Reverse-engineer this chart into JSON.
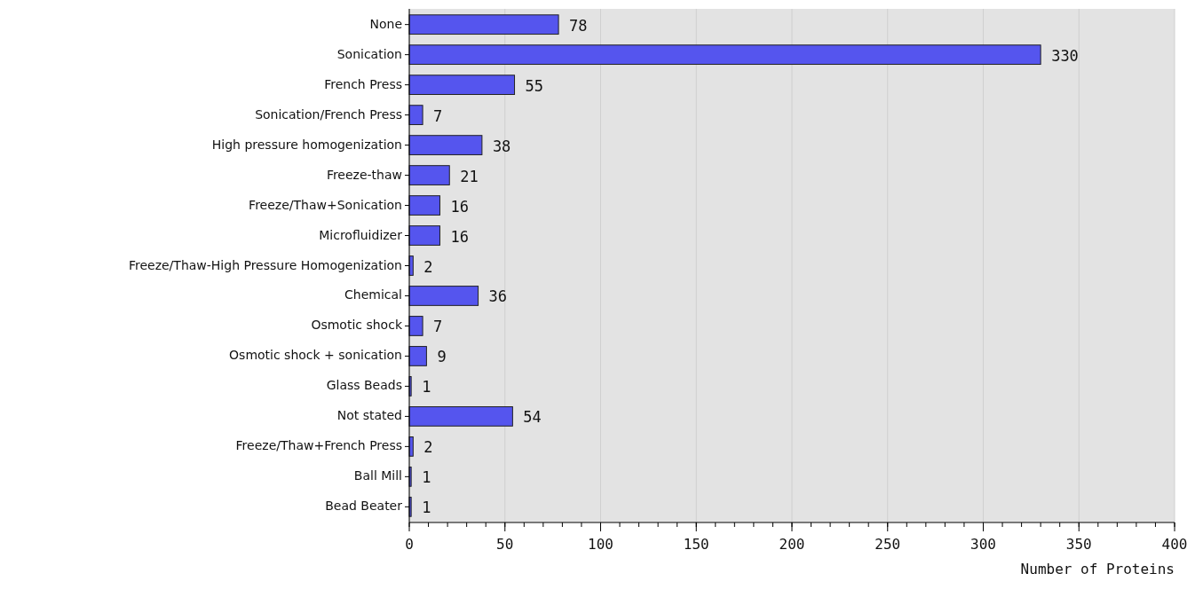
{
  "chart_data": {
    "type": "bar",
    "orientation": "horizontal",
    "xlabel": "Number of Proteins",
    "categories": [
      "None",
      "Sonication",
      "French Press",
      "Sonication/French Press",
      "High pressure homogenization",
      "Freeze-thaw",
      "Freeze/Thaw+Sonication",
      "Microfluidizer",
      "Freeze/Thaw-High Pressure Homogenization",
      "Chemical",
      "Osmotic shock",
      "Osmotic shock + sonication",
      "Glass Beads",
      "Not stated",
      "Freeze/Thaw+French Press",
      "Ball Mill",
      "Bead Beater"
    ],
    "values": [
      78,
      330,
      55,
      7,
      38,
      21,
      16,
      16,
      2,
      36,
      7,
      9,
      1,
      54,
      2,
      1,
      1
    ],
    "color": "#5555ee",
    "xlim": [
      0,
      400
    ],
    "xticks": [
      0,
      50,
      100,
      150,
      200,
      250,
      300,
      350,
      400
    ],
    "grid": "x",
    "data_labels": true
  }
}
